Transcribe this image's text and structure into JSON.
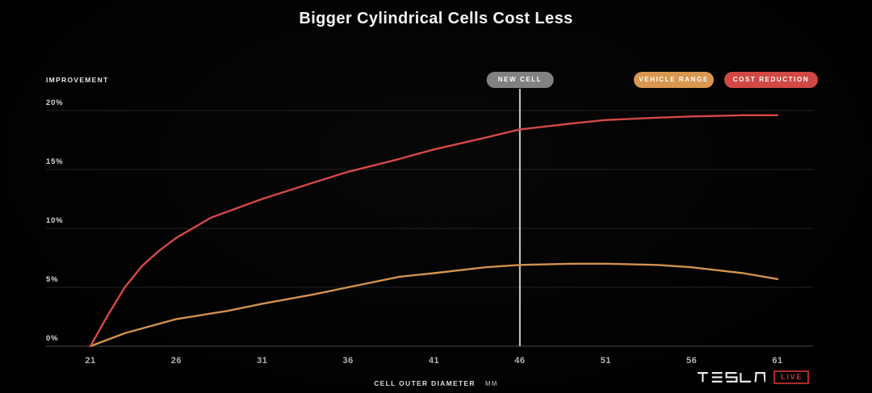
{
  "title": "Bigger Cylindrical Cells Cost Less",
  "axis": {
    "ylabel": "IMPROVEMENT",
    "xlabel": "CELL OUTER DIAMETER",
    "xunit": "MM"
  },
  "legend": {
    "new_cell": "NEW CELL",
    "vehicle_range": "VEHICLE RANGE",
    "cost_reduction": "COST REDUCTION"
  },
  "branding": {
    "wordmark": "TESLA",
    "live": "LIVE"
  },
  "colors": {
    "vehicle_range": "#d2924f",
    "cost_reduction": "#d64848",
    "new_cell_pill": "#818181",
    "range_pill": "#d99750",
    "cost_pill": "#d04944",
    "grid": "#232323",
    "baseline": "#474747",
    "marker_line": "#c9c9c9",
    "background": "#020202"
  },
  "chart_data": {
    "type": "line",
    "title": "Bigger Cylindrical Cells Cost Less",
    "xlabel": "CELL OUTER DIAMETER (MM)",
    "ylabel": "IMPROVEMENT",
    "xlim": [
      21,
      61
    ],
    "ylim": [
      0,
      20
    ],
    "xticks": [
      21,
      26,
      31,
      36,
      41,
      46,
      51,
      56,
      61
    ],
    "yticks": [
      0,
      5,
      10,
      15,
      20
    ],
    "ytick_suffix": "%",
    "grid": true,
    "legend_position": "top-right",
    "annotation": {
      "label": "NEW CELL",
      "x": 46
    },
    "series": [
      {
        "name": "VEHICLE RANGE",
        "color": "#d2924f",
        "x": [
          21,
          23,
          26,
          29,
          31,
          34,
          36,
          39,
          41,
          44,
          46,
          49,
          51,
          54,
          56,
          59,
          61
        ],
        "values": [
          0,
          1.1,
          2.3,
          3.0,
          3.6,
          4.4,
          5.0,
          5.9,
          6.2,
          6.7,
          6.9,
          7.0,
          7.0,
          6.9,
          6.7,
          6.2,
          5.7
        ]
      },
      {
        "name": "COST REDUCTION",
        "color": "#d64848",
        "x": [
          21,
          22,
          23,
          24,
          25,
          26,
          28,
          31,
          34,
          36,
          39,
          41,
          44,
          46,
          49,
          51,
          54,
          56,
          59,
          61
        ],
        "values": [
          0,
          2.6,
          5.0,
          6.8,
          8.1,
          9.2,
          10.9,
          12.5,
          13.9,
          14.8,
          15.9,
          16.7,
          17.7,
          18.4,
          18.9,
          19.2,
          19.4,
          19.5,
          19.6,
          19.6
        ]
      }
    ]
  }
}
